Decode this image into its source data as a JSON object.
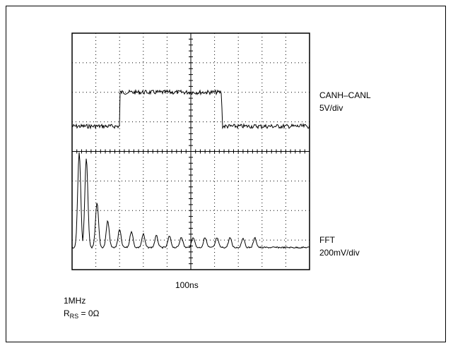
{
  "chart_data": [
    {
      "type": "line",
      "series": [
        {
          "name": "CANH–CANL",
          "scale": "5V/div",
          "x": [
            0,
            2,
            2.02,
            6.3,
            6.32,
            8.4
          ],
          "y": [
            0.85,
            0.85,
            2.0,
            2.0,
            0.85,
            0.85
          ]
        },
        {
          "name": "FFT",
          "scale": "200mV/div",
          "x": [
            0.3,
            0.6,
            1.05,
            1.5,
            2.0,
            2.5,
            3.0,
            3.55,
            4.1,
            4.6,
            5.1,
            5.6,
            6.1,
            6.65,
            7.2,
            7.7
          ],
          "y": [
            3.2,
            3.0,
            1.5,
            0.9,
            0.6,
            0.55,
            0.45,
            0.4,
            0.38,
            0.36,
            0.35,
            0.34,
            0.33,
            0.33,
            0.32,
            0.32
          ]
        }
      ],
      "xlabel": "100ns",
      "notes": [
        "1MHz",
        "R",
        "RS",
        " = 0Ω"
      ],
      "grid": "on",
      "divisions": {
        "x": 10,
        "y": 8
      }
    }
  ]
}
